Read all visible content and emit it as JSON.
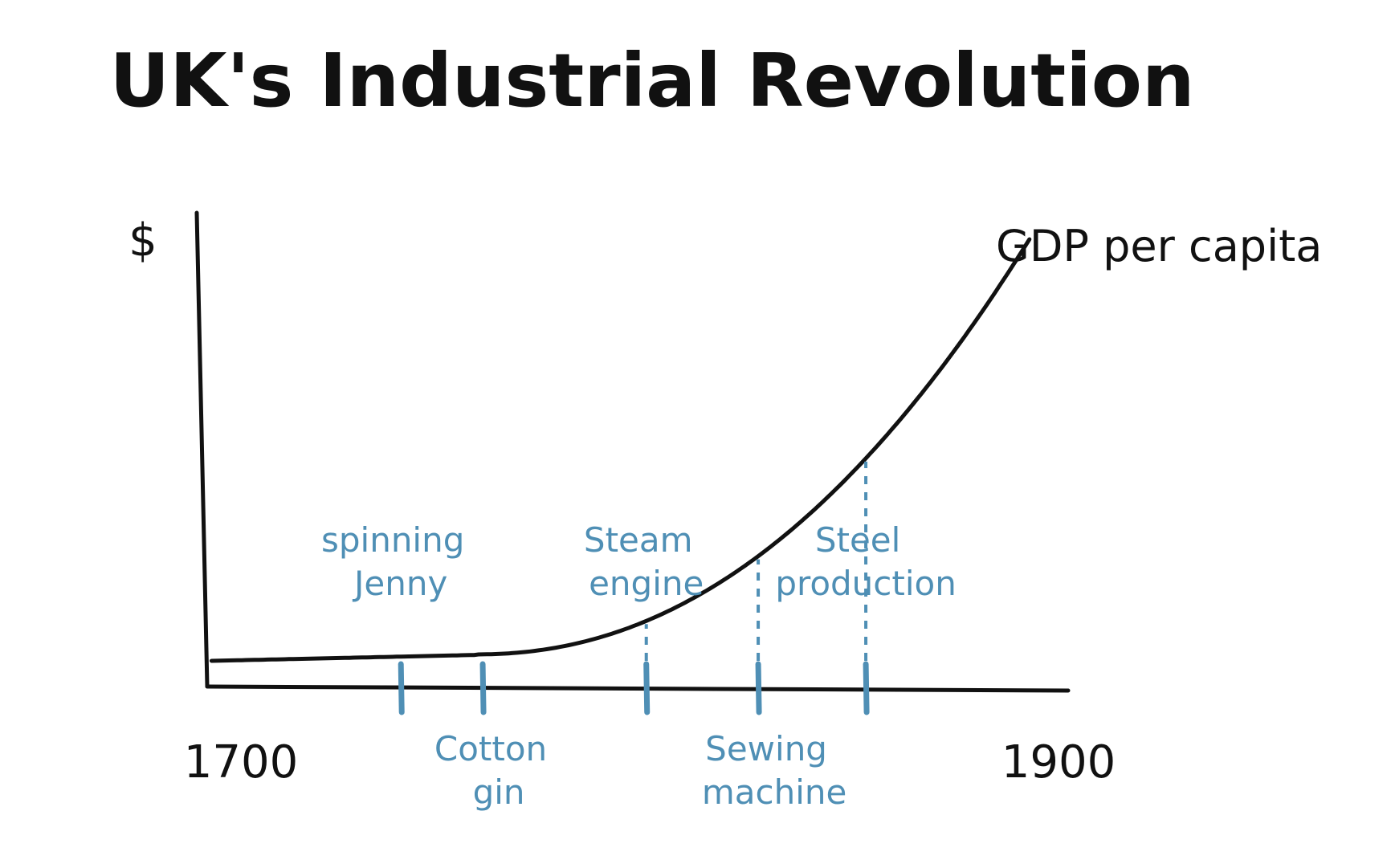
{
  "chart_data": {
    "type": "line",
    "title": "UK's Industrial Revolution",
    "ylabel": "$",
    "x_tick_labels": [
      "1700",
      "1900"
    ],
    "xlim": [
      1700,
      1900
    ],
    "grid": false,
    "series": [
      {
        "name": "GDP per capita",
        "shape": "flat then exponential rise",
        "color": "#111111"
      }
    ],
    "annotations": [
      {
        "label": "spinning Jenny",
        "year": 1745,
        "position": "above"
      },
      {
        "label": "Cotton gin",
        "year": 1764,
        "position": "below"
      },
      {
        "label": "Steam engine",
        "year": 1802,
        "position": "above"
      },
      {
        "label": "Sewing machine",
        "year": 1828,
        "position": "below"
      },
      {
        "label": "Steel production",
        "year": 1853,
        "position": "above"
      }
    ],
    "colors": {
      "axis": "#111111",
      "curve": "#111111",
      "annotation": "#4f8fb5"
    }
  }
}
